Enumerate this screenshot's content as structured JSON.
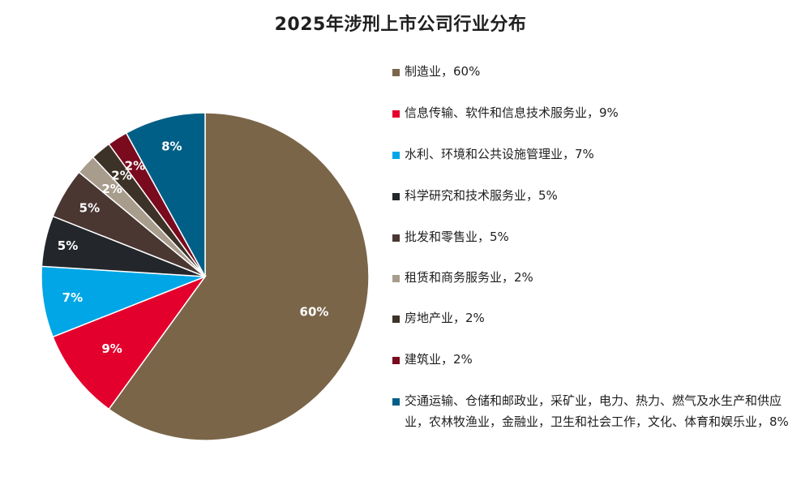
{
  "chart_data": {
    "type": "pie",
    "title": "2025年涉刑上市公司行业分布",
    "categories": [
      "制造业",
      "信息传输、软件和信息技术服务业",
      "水利、环境和公共设施管理业",
      "科学研究和技术服务业",
      "批发和零售业",
      "租赁和商务服务业",
      "房地产业",
      "建筑业",
      "交通运输、仓储和邮政业，采矿业，电力、热力、燃气及水生产和供应业，农林牧渔业，金融业，卫生和社会工作，文化、体育和娱乐业"
    ],
    "values": [
      60,
      9,
      7,
      5,
      5,
      2,
      2,
      2,
      8
    ],
    "value_labels": [
      "60%",
      "9%",
      "7%",
      "5%",
      "5%",
      "2%",
      "2%",
      "2%",
      "8%"
    ],
    "colors": [
      "#7b6549",
      "#e3002d",
      "#00a6e6",
      "#23272b",
      "#4a3732",
      "#a89c8c",
      "#3d3227",
      "#7a0a1e",
      "#005f87"
    ],
    "legend_labels": [
      "制造业，60%",
      "信息传输、软件和信息技术服务业，9%",
      "水利、环境和公共设施管理业，7%",
      "科学研究和技术服务业，5%",
      "批发和零售业，5%",
      "租赁和商务服务业，2%",
      "房地产业，2%",
      "建筑业，2%",
      "交通运输、仓储和邮政业，采矿业，电力、热力、燃气及水生产和供应业，农林牧渔业，金融业，卫生和社会工作，文化、体育和娱乐业，8%"
    ],
    "legend_position": "right",
    "start_angle": "12 o'clock",
    "direction": "clockwise"
  }
}
